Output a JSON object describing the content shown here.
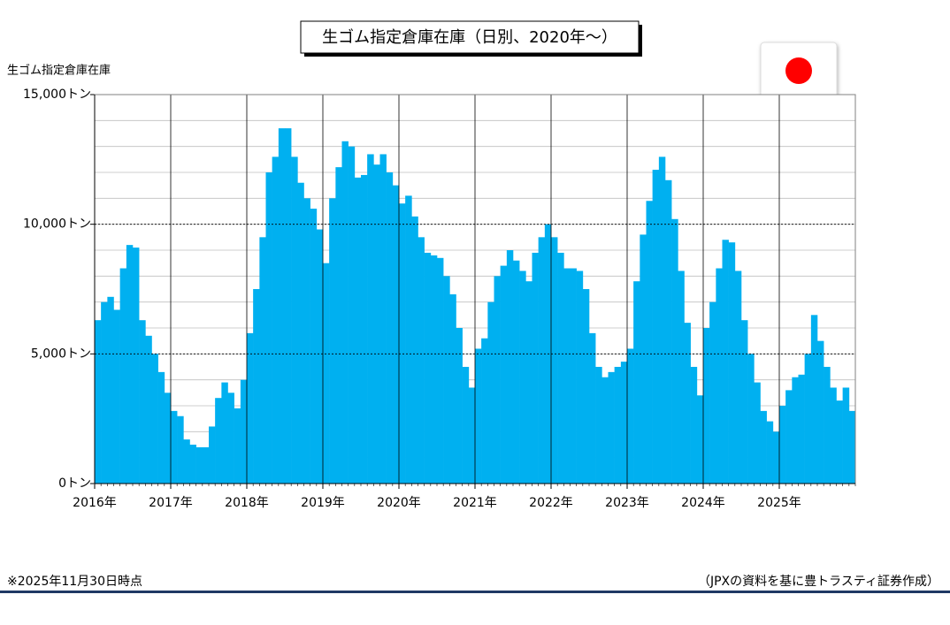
{
  "chart_data": {
    "type": "bar",
    "title": "生ゴム指定倉庫在庫（日別、2020年～）",
    "y_label": "生ゴム指定倉庫在庫",
    "footnote": "※2025年11月30日時点",
    "source": "（JPXの資料を基に豊トラスティ証券作成）",
    "color": "#00b0f0",
    "xlim": [
      2016,
      2026
    ],
    "xticks": [
      {
        "value": 2016,
        "label": "2016年"
      },
      {
        "value": 2017,
        "label": "2017年"
      },
      {
        "value": 2018,
        "label": "2018年"
      },
      {
        "value": 2019,
        "label": "2019年"
      },
      {
        "value": 2020,
        "label": "2020年"
      },
      {
        "value": 2021,
        "label": "2021年"
      },
      {
        "value": 2022,
        "label": "2022年"
      },
      {
        "value": 2023,
        "label": "2023年"
      },
      {
        "value": 2024,
        "label": "2024年"
      },
      {
        "value": 2025,
        "label": "2025年"
      }
    ],
    "ylim": [
      0,
      15000
    ],
    "yticks": [
      {
        "value": 0,
        "label": "0トン"
      },
      {
        "value": 5000,
        "label": "5,000トン"
      },
      {
        "value": 10000,
        "label": "10,000トン"
      },
      {
        "value": 15000,
        "label": "15,000トン"
      }
    ],
    "minor_grid_step": 1000,
    "grid": true,
    "x": [
      2016,
      2016.083,
      2016.167,
      2016.25,
      2016.333,
      2016.417,
      2016.5,
      2016.583,
      2016.667,
      2016.75,
      2016.833,
      2016.917,
      2017,
      2017.083,
      2017.167,
      2017.25,
      2017.333,
      2017.417,
      2017.5,
      2017.583,
      2017.667,
      2017.75,
      2017.833,
      2017.917,
      2018,
      2018.083,
      2018.167,
      2018.25,
      2018.333,
      2018.417,
      2018.5,
      2018.583,
      2018.667,
      2018.75,
      2018.833,
      2018.917,
      2019,
      2019.083,
      2019.167,
      2019.25,
      2019.333,
      2019.417,
      2019.5,
      2019.583,
      2019.667,
      2019.75,
      2019.833,
      2019.917,
      2020,
      2020.083,
      2020.167,
      2020.25,
      2020.333,
      2020.417,
      2020.5,
      2020.583,
      2020.667,
      2020.75,
      2020.833,
      2020.917,
      2021,
      2021.083,
      2021.167,
      2021.25,
      2021.333,
      2021.417,
      2021.5,
      2021.583,
      2021.667,
      2021.75,
      2021.833,
      2021.917,
      2022,
      2022.083,
      2022.167,
      2022.25,
      2022.333,
      2022.417,
      2022.5,
      2022.583,
      2022.667,
      2022.75,
      2022.833,
      2022.917,
      2023,
      2023.083,
      2023.167,
      2023.25,
      2023.333,
      2023.417,
      2023.5,
      2023.583,
      2023.667,
      2023.75,
      2023.833,
      2023.917,
      2024,
      2024.083,
      2024.167,
      2024.25,
      2024.333,
      2024.417,
      2024.5,
      2024.583,
      2024.667,
      2024.75,
      2024.833,
      2024.917,
      2025,
      2025.083,
      2025.167,
      2025.25,
      2025.333,
      2025.417,
      2025.5,
      2025.583,
      2025.667,
      2025.75,
      2025.833,
      2025.917
    ],
    "values": [
      6300,
      7000,
      7200,
      6700,
      8300,
      9200,
      9100,
      6300,
      5700,
      5000,
      4300,
      3500,
      2800,
      2600,
      1700,
      1500,
      1400,
      1400,
      2200,
      3300,
      3900,
      3500,
      2900,
      4000,
      5800,
      7500,
      9500,
      12000,
      12600,
      13700,
      13700,
      12600,
      11600,
      11000,
      10600,
      9800,
      8500,
      11000,
      12200,
      13200,
      13000,
      11800,
      11900,
      12700,
      12300,
      12700,
      12000,
      11500,
      10800,
      11100,
      10300,
      9500,
      8900,
      8800,
      8700,
      8000,
      7300,
      6000,
      4500,
      3700,
      5200,
      5600,
      7000,
      8000,
      8400,
      9000,
      8600,
      8200,
      7800,
      8900,
      9500,
      10000,
      9500,
      8900,
      8300,
      8300,
      8200,
      7500,
      5800,
      4500,
      4100,
      4300,
      4500,
      4700,
      5200,
      7800,
      9600,
      10900,
      12100,
      12600,
      11700,
      10200,
      8200,
      6200,
      4500,
      3400,
      6000,
      7000,
      8300,
      9400,
      9300,
      8200,
      6300,
      5000,
      3900,
      2800,
      2400,
      2000,
      3000,
      3600,
      4100,
      4200,
      5000,
      6500,
      5500,
      4500,
      3700,
      3200,
      3700,
      2800
    ]
  }
}
